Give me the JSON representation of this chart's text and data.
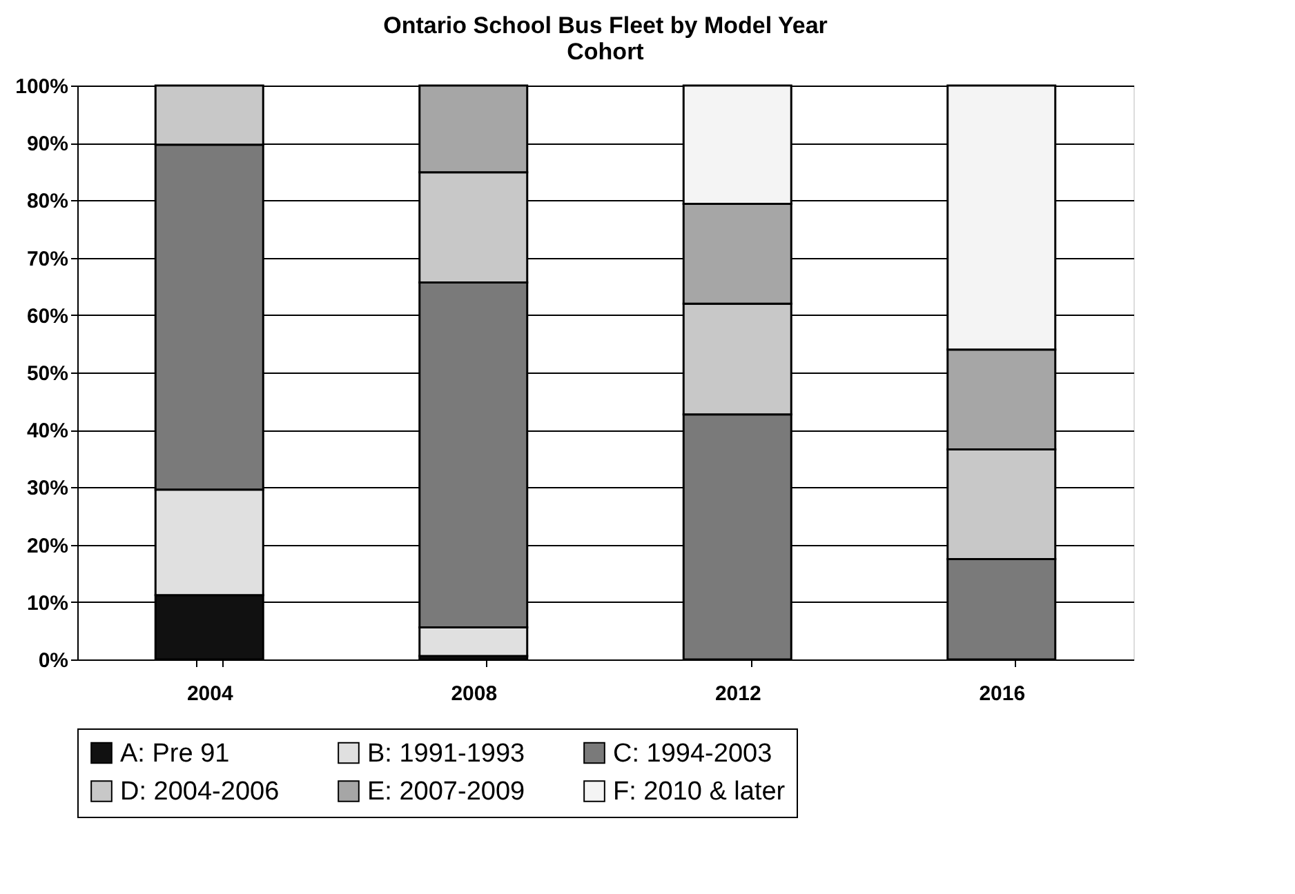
{
  "chart_data": {
    "type": "bar",
    "stacked": true,
    "title": "Ontario School Bus Fleet by Model Year\nCohort",
    "categories": [
      "2004",
      "2008",
      "2012",
      "2016"
    ],
    "series": [
      {
        "name": "A: Pre 91",
        "color": "#111111",
        "values": [
          11.2,
          0.6,
          null,
          null
        ]
      },
      {
        "name": "B: 1991-1993",
        "color": "#e0e0e0",
        "values": [
          18.4,
          5.0,
          null,
          null
        ]
      },
      {
        "name": "C: 1994-2003",
        "color": "#7a7a7a",
        "values": [
          60.1,
          60.1,
          42.7,
          17.5
        ]
      },
      {
        "name": "D: 2004-2006",
        "color": "#c8c8c8",
        "values": [
          10.3,
          19.2,
          19.3,
          19.1
        ]
      },
      {
        "name": "E: 2007-2009",
        "color": "#a6a6a6",
        "values": [
          null,
          15.1,
          17.4,
          17.4
        ]
      },
      {
        "name": "F: 2010 & later",
        "color": "#f4f4f4",
        "values": [
          null,
          null,
          20.6,
          46.0
        ]
      }
    ],
    "ylim": [
      0,
      100
    ],
    "yticks": [
      {
        "value": 0,
        "label": "0%"
      },
      {
        "value": 10,
        "label": "10%"
      },
      {
        "value": 20,
        "label": "20%"
      },
      {
        "value": 30,
        "label": "30%"
      },
      {
        "value": 40,
        "label": "40%"
      },
      {
        "value": 50,
        "label": "50%"
      },
      {
        "value": 60,
        "label": "60%"
      },
      {
        "value": 70,
        "label": "70%"
      },
      {
        "value": 80,
        "label": "80%"
      },
      {
        "value": 90,
        "label": "90%"
      },
      {
        "value": 100,
        "label": "100%"
      }
    ],
    "grid": "y",
    "legend": "bottom"
  }
}
